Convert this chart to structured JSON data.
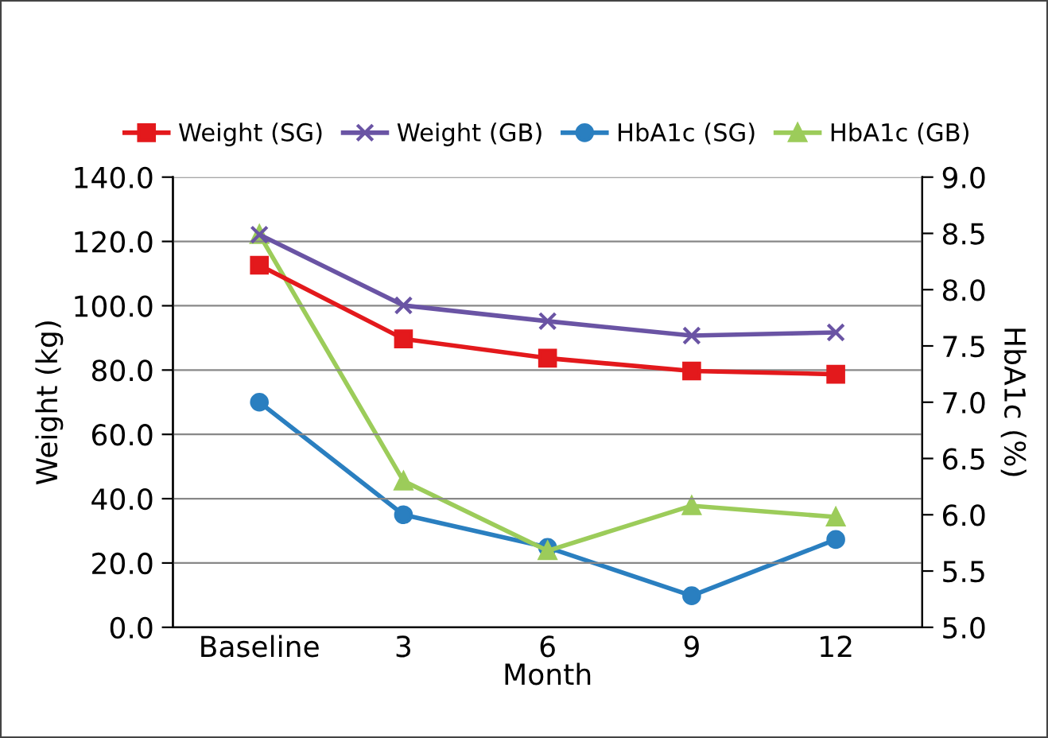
{
  "chart_data": {
    "type": "line",
    "xlabel": "Month",
    "ylabel": "Weight (kg)",
    "y2label": "HbA1c (%)",
    "categories": [
      "Baseline",
      "3",
      "6",
      "9",
      "12"
    ],
    "series": [
      {
        "name": "Weight (SG)",
        "color": "#e3191c",
        "marker": "square",
        "values": [
          112.6,
          89.7,
          83.7,
          79.7,
          78.7
        ]
      },
      {
        "name": "Weight (GB)",
        "color": "#6a54a4",
        "marker": "cross",
        "values": [
          122.1,
          100.1,
          95.2,
          90.7,
          91.7
        ]
      },
      {
        "name": "HbA1c (SG)",
        "color": "#2a7fc0",
        "marker": "circle",
        "axis": "y2",
        "values": [
          7.0,
          6.0,
          5.71,
          5.28,
          5.78
        ]
      },
      {
        "name": "HbA1c (GB)",
        "color": "#9ccc5a",
        "marker": "triangle",
        "axis": "y2",
        "values": [
          8.49,
          6.3,
          5.68,
          6.08,
          5.98
        ]
      }
    ],
    "ylim": [
      0,
      140
    ],
    "yticks": [
      {
        "value": 0,
        "label": "0.0"
      },
      {
        "value": 20,
        "label": "20.0"
      },
      {
        "value": 40,
        "label": "40.0"
      },
      {
        "value": 60,
        "label": "60.0"
      },
      {
        "value": 80,
        "label": "80.0"
      },
      {
        "value": 100,
        "label": "100.0"
      },
      {
        "value": 120,
        "label": "120.0"
      },
      {
        "value": 140,
        "label": "140.0"
      }
    ],
    "y2lim": [
      5,
      9
    ],
    "y2ticks": [
      {
        "value": 5,
        "label": "5.0"
      },
      {
        "value": 5.5,
        "label": "5.5"
      },
      {
        "value": 6,
        "label": "6.0"
      },
      {
        "value": 6.5,
        "label": "6.5"
      },
      {
        "value": 7,
        "label": "7.0"
      },
      {
        "value": 7.5,
        "label": "7.5"
      },
      {
        "value": 8,
        "label": "8.0"
      },
      {
        "value": 8.5,
        "label": "8.5"
      },
      {
        "value": 9,
        "label": "9.0"
      }
    ],
    "grid": "y",
    "legend": "top",
    "line_style": "solid"
  }
}
